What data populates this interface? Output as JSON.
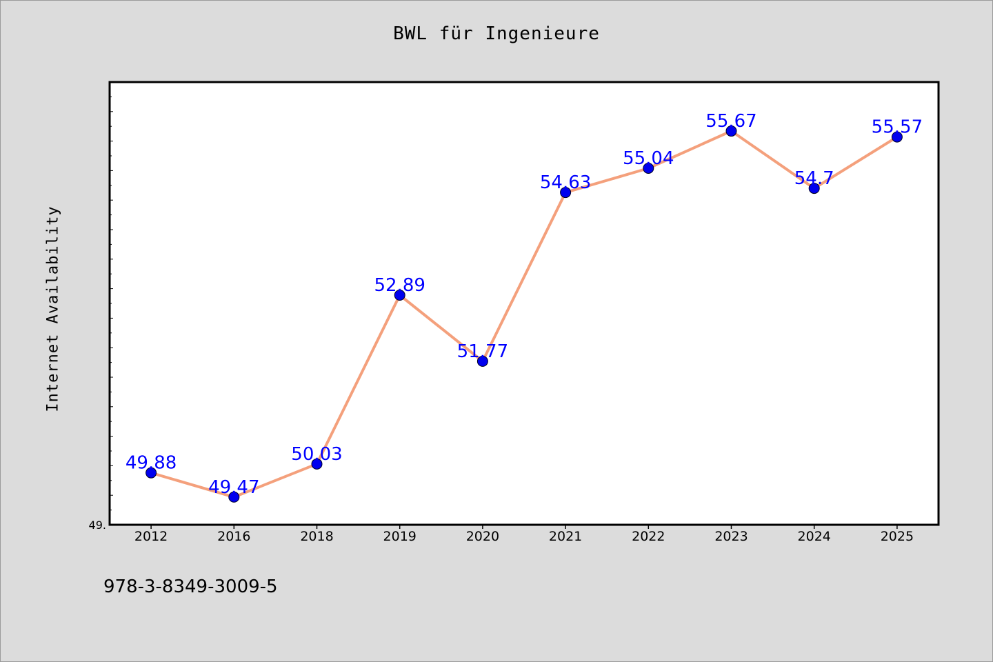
{
  "chart_data": {
    "type": "line",
    "title": "BWL für Ingenieure",
    "ylabel": "Internet Availability",
    "xlabel": "",
    "categories": [
      "2012",
      "2016",
      "2018",
      "2019",
      "2020",
      "2021",
      "2022",
      "2023",
      "2024",
      "2025"
    ],
    "series": [
      {
        "values": [
          49.88,
          49.47,
          50.03,
          52.89,
          51.77,
          54.63,
          55.04,
          55.67,
          54.7,
          55.57
        ]
      }
    ],
    "data_labels": [
      "49.88",
      "49.47",
      "50.03",
      "52.89",
      "51.77",
      "54.63",
      "55.04",
      "55.67",
      "54.7",
      "55.57"
    ],
    "y_min_tick_label": "49.",
    "ylim": [
      49.0,
      56.5
    ],
    "grid": false,
    "legend": "none",
    "colors": {
      "line": "#f4a07c",
      "marker": "#0000ee",
      "data_label": "#0000ff",
      "plot_background": "#ffffff",
      "page_background": "#dcdcdc"
    }
  },
  "footer": {
    "isbn": "978-3-8349-3009-5"
  }
}
